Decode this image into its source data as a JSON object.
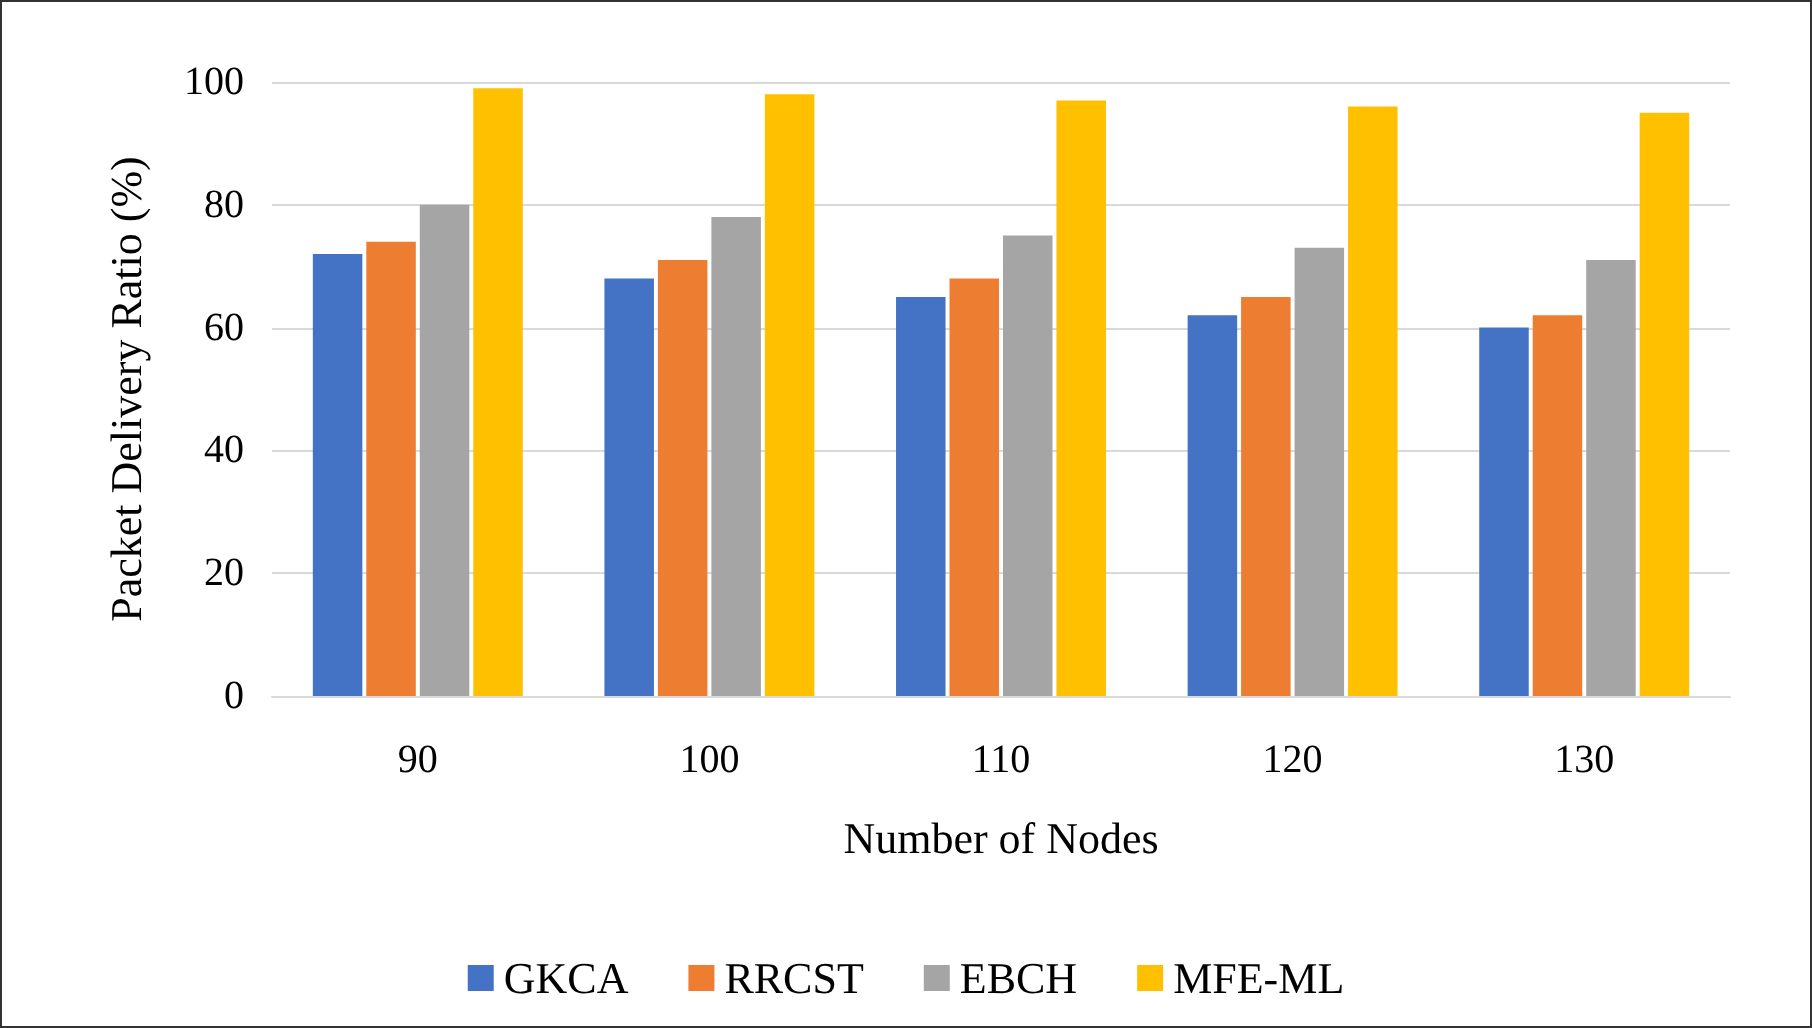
{
  "chart_data": {
    "type": "bar",
    "xlabel": "Number of Nodes",
    "ylabel": "Packet Delivery Ratio (%)",
    "categories": [
      "90",
      "100",
      "110",
      "120",
      "130"
    ],
    "series": [
      {
        "name": "GKCA",
        "color": "#4472c4",
        "values": [
          72,
          68,
          65,
          62,
          60
        ]
      },
      {
        "name": "RRCST",
        "color": "#ed7d31",
        "values": [
          74,
          71,
          68,
          65,
          62
        ]
      },
      {
        "name": "EBCH",
        "color": "#a5a5a5",
        "values": [
          80,
          78,
          75,
          73,
          71
        ]
      },
      {
        "name": "MFE-ML",
        "color": "#ffc000",
        "values": [
          99,
          98,
          97,
          96,
          95
        ]
      }
    ],
    "ylim": [
      0,
      100
    ],
    "yticks": [
      0,
      20,
      40,
      60,
      80,
      100
    ],
    "grid": "y",
    "legend": "bottom"
  }
}
